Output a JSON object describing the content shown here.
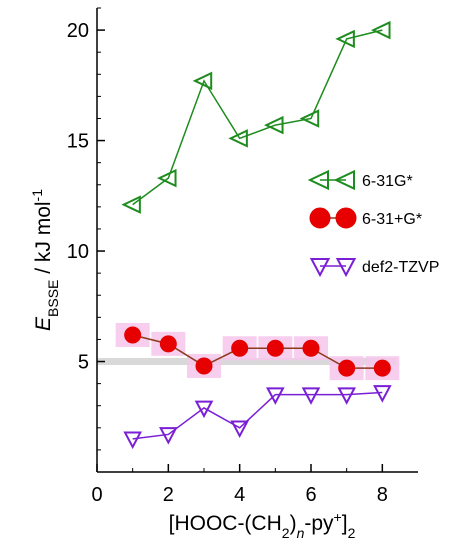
{
  "chart_data": {
    "type": "line",
    "x": [
      1,
      2,
      3,
      4,
      5,
      6,
      7,
      8
    ],
    "xlim": [
      0,
      9
    ],
    "ylim": [
      0,
      21
    ],
    "xticks": [
      0,
      2,
      4,
      6,
      8
    ],
    "yticks": [
      5,
      10,
      15,
      20
    ],
    "xlabel": {
      "prefix": "[HOOC-(CH",
      "sub1": "2",
      "mid": ")",
      "sub_n": "n",
      "suffix": "-py",
      "sup": "+",
      "close": "]",
      "sub2": "2"
    },
    "ylabel": {
      "symbol": "E",
      "sub": "BSSE",
      "units": " / kJ mol",
      "sup": "-1"
    },
    "reference_line": {
      "y": 5.0,
      "color": "#d9d9d9"
    },
    "grid": false,
    "legend_position": "right-middle",
    "series": [
      {
        "name": "6-31G*",
        "marker": "triangle-left",
        "color": "#1e8c1e",
        "values": [
          12.1,
          13.3,
          17.7,
          15.1,
          15.7,
          16.0,
          19.6,
          20.0
        ]
      },
      {
        "name": "6-31+G*",
        "marker": "circle",
        "color": "#e60000",
        "line_color": "#8b3a1a",
        "highlight_color": "#f7c6ec",
        "values": [
          6.2,
          5.8,
          4.8,
          5.6,
          5.6,
          5.6,
          4.7,
          4.7
        ]
      },
      {
        "name": "def2-TZVP",
        "marker": "triangle-down",
        "color": "#7a1fd6",
        "values": [
          1.5,
          1.7,
          2.9,
          2.0,
          3.5,
          3.5,
          3.5,
          3.6
        ]
      }
    ]
  }
}
